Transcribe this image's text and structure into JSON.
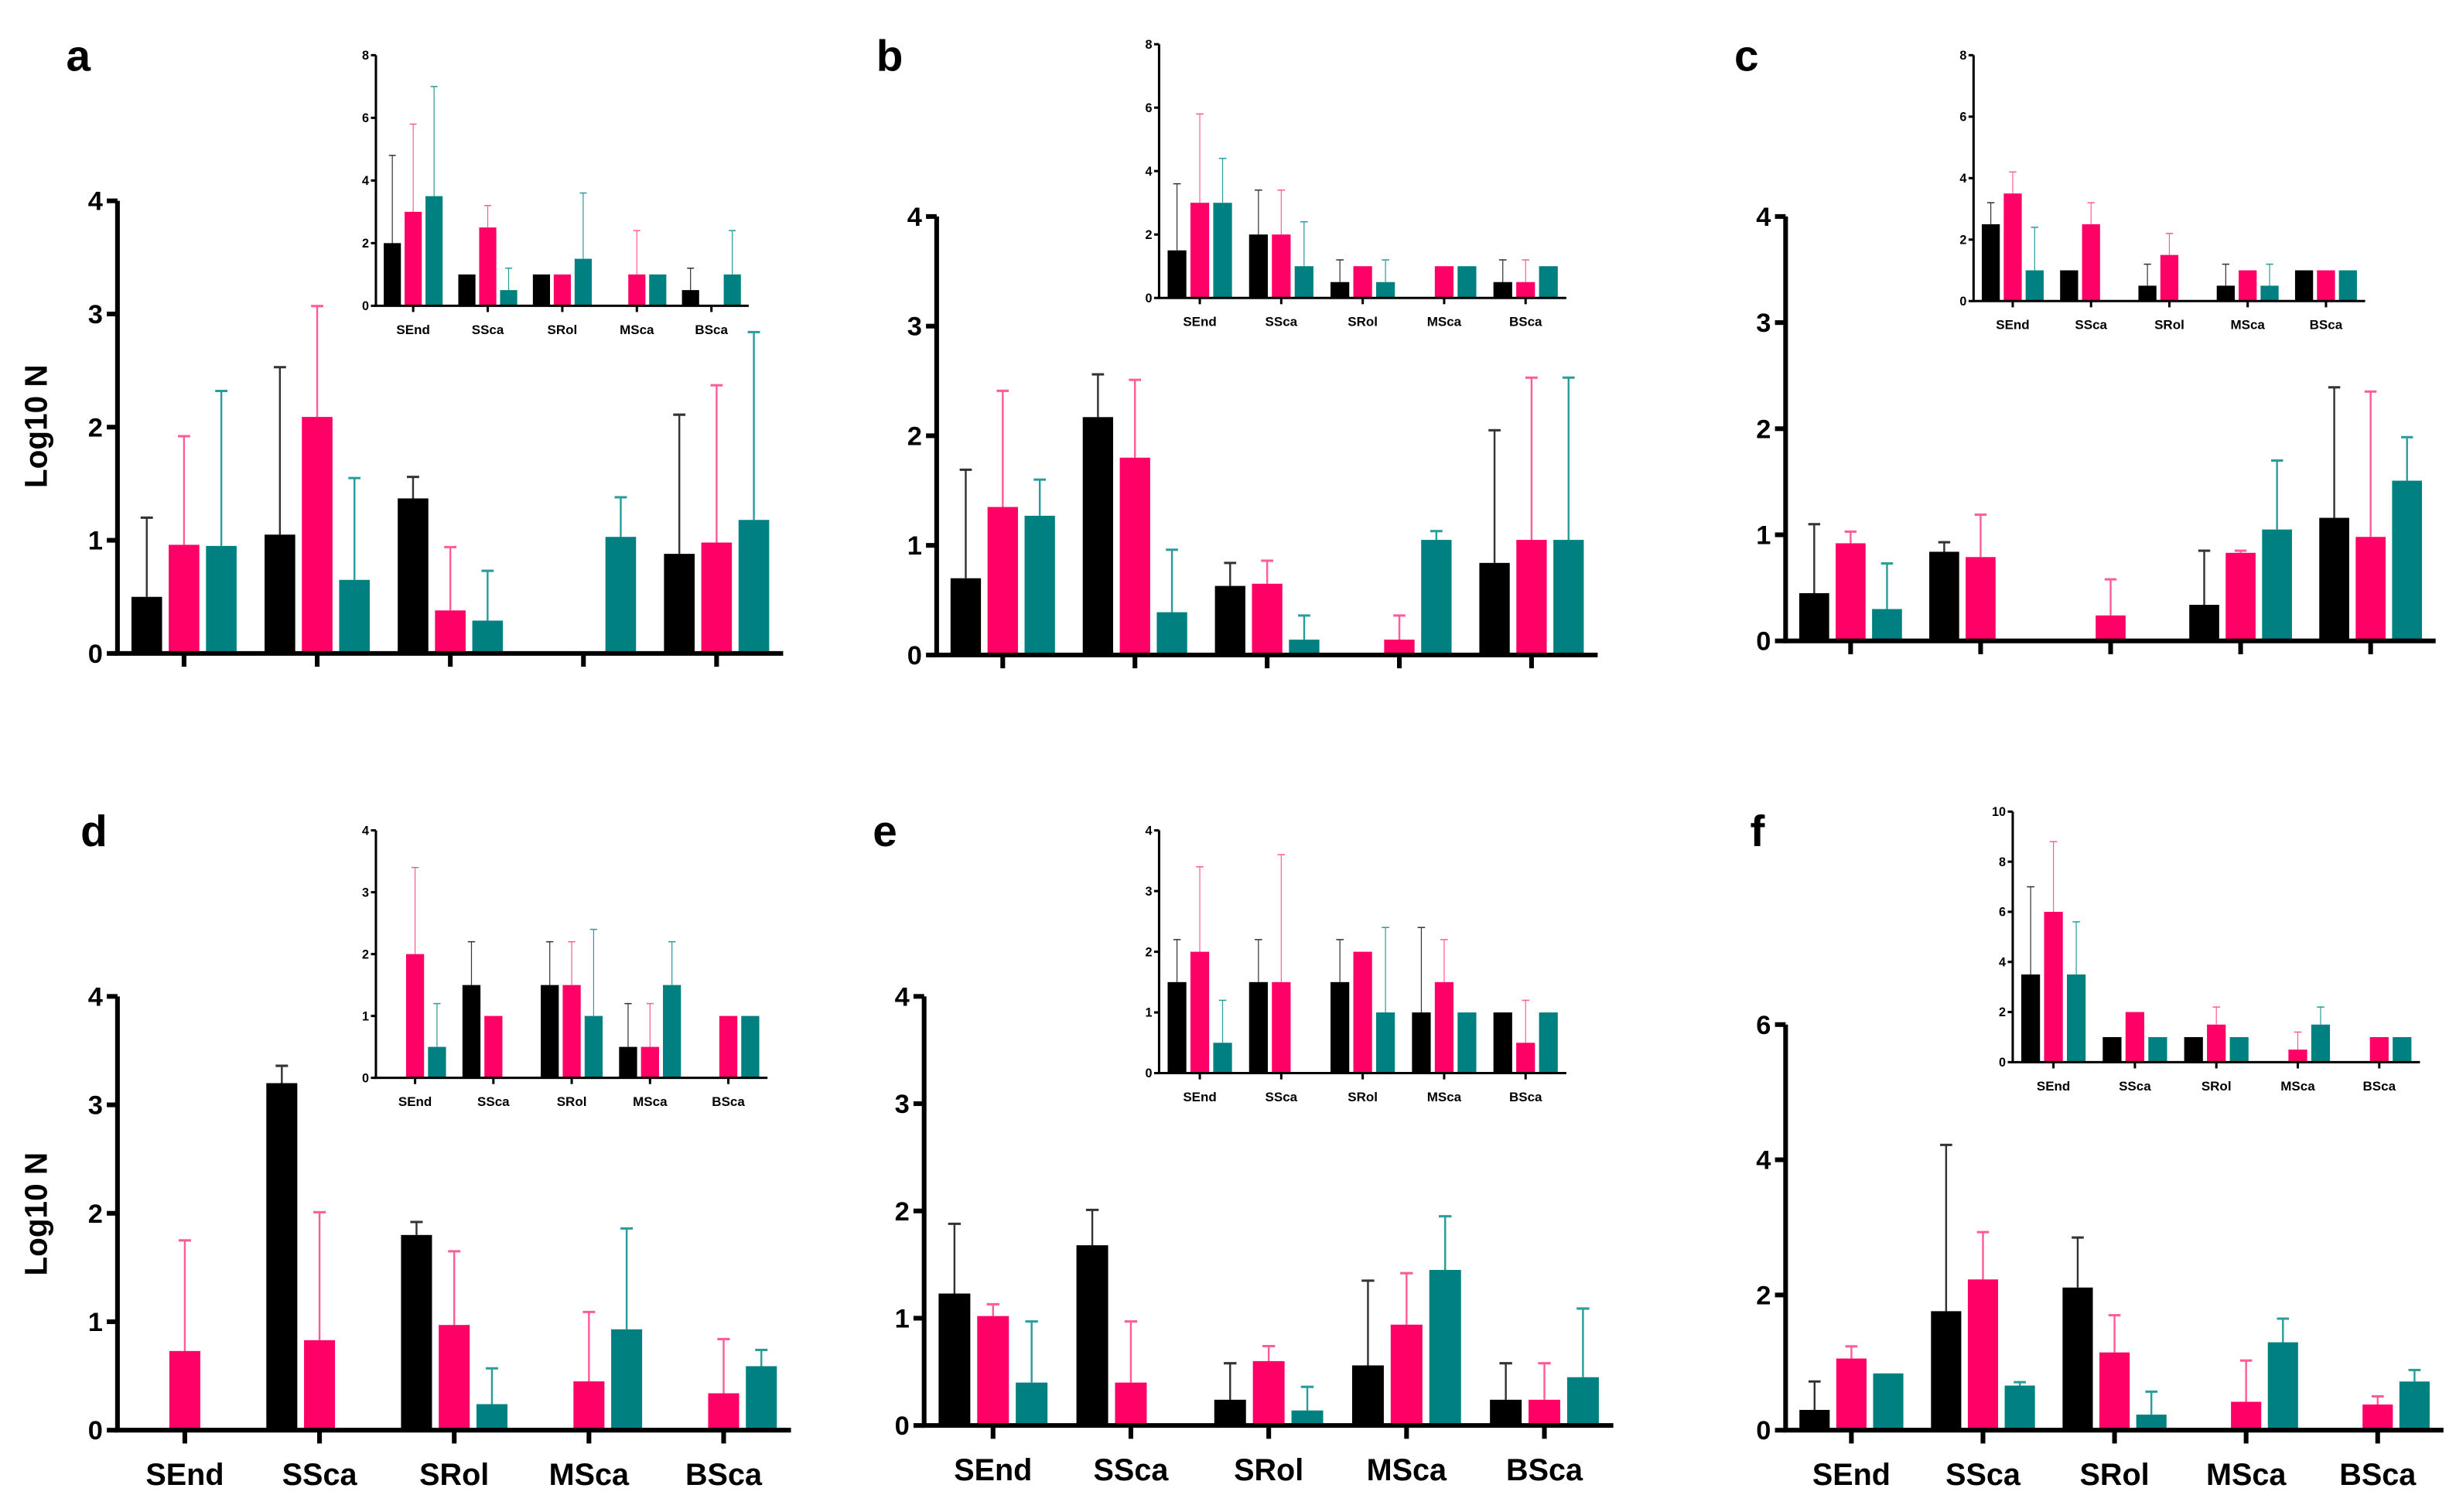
{
  "colors": {
    "series": [
      "#000000",
      "#ff0066",
      "#008080"
    ],
    "errors": [
      "#333333",
      "#ff5c99",
      "#2a9c9c"
    ]
  },
  "chart_data": [
    {
      "type": "bar",
      "panel": "a",
      "ylabel": "Log10 N",
      "categories": [
        "SEnd",
        "SSca",
        "SRol",
        "MSca",
        "BSca"
      ],
      "show_category_labels": false,
      "main": {
        "ylim": [
          0,
          4
        ],
        "yticks": [
          0,
          1,
          2,
          3,
          4
        ],
        "series": [
          {
            "values": [
              0.5,
              1.05,
              1.37,
              0,
              0.88
            ],
            "err_upper": [
              1.2,
              2.53,
              1.56,
              null,
              2.11
            ]
          },
          {
            "values": [
              0.96,
              2.09,
              0.38,
              0,
              0.98
            ],
            "err_upper": [
              1.92,
              3.07,
              0.94,
              null,
              2.37
            ]
          },
          {
            "values": [
              0.95,
              0.65,
              0.29,
              1.03,
              1.18
            ],
            "err_upper": [
              2.32,
              1.55,
              0.73,
              1.38,
              2.84
            ]
          }
        ]
      },
      "inset": {
        "ylim": [
          0,
          8
        ],
        "yticks": [
          0,
          2,
          4,
          6,
          8
        ],
        "series": [
          {
            "values": [
              2,
              1,
              1,
              0,
              0.5
            ],
            "err_upper": [
              4.8,
              null,
              null,
              null,
              1.2
            ]
          },
          {
            "values": [
              3,
              2.5,
              1,
              1,
              0
            ],
            "err_upper": [
              5.8,
              3.2,
              null,
              2.4,
              null
            ]
          },
          {
            "values": [
              3.5,
              0.5,
              1.5,
              1,
              1
            ],
            "err_upper": [
              7,
              1.2,
              3.6,
              null,
              2.4
            ]
          }
        ]
      }
    },
    {
      "type": "bar",
      "panel": "b",
      "ylabel": "",
      "categories": [
        "SEnd",
        "SSca",
        "SRol",
        "MSca",
        "BSca"
      ],
      "show_category_labels": false,
      "main": {
        "ylim": [
          0,
          4
        ],
        "yticks": [
          0,
          1,
          2,
          3,
          4
        ],
        "series": [
          {
            "values": [
              0.7,
              2.17,
              0.63,
              0,
              0.84
            ],
            "err_upper": [
              1.69,
              2.56,
              0.84,
              null,
              2.05
            ]
          },
          {
            "values": [
              1.35,
              1.8,
              0.65,
              0.14,
              1.05
            ],
            "err_upper": [
              2.41,
              2.51,
              0.86,
              0.36,
              2.53
            ]
          },
          {
            "values": [
              1.27,
              0.39,
              0.14,
              1.05,
              1.05
            ],
            "err_upper": [
              1.6,
              0.96,
              0.36,
              1.13,
              2.53
            ]
          }
        ]
      },
      "inset": {
        "ylim": [
          0,
          8
        ],
        "yticks": [
          0,
          2,
          4,
          6,
          8
        ],
        "series": [
          {
            "values": [
              1.5,
              2,
              0.5,
              0,
              0.5
            ],
            "err_upper": [
              3.6,
              3.4,
              1.2,
              null,
              1.2
            ]
          },
          {
            "values": [
              3,
              2,
              1,
              1,
              0.5
            ],
            "err_upper": [
              5.8,
              3.4,
              null,
              null,
              1.2
            ]
          },
          {
            "values": [
              3,
              1,
              0.5,
              1,
              1
            ],
            "err_upper": [
              4.4,
              2.4,
              1.2,
              null,
              null
            ]
          }
        ]
      }
    },
    {
      "type": "bar",
      "panel": "c",
      "ylabel": "",
      "categories": [
        "SEnd",
        "SSca",
        "SRol",
        "MSca",
        "BSca"
      ],
      "show_category_labels": false,
      "main": {
        "ylim": [
          0,
          4
        ],
        "yticks": [
          0,
          1,
          2,
          3,
          4
        ],
        "series": [
          {
            "values": [
              0.45,
              0.84,
              0,
              0.34,
              1.16
            ],
            "err_upper": [
              1.1,
              0.93,
              null,
              0.85,
              2.39
            ]
          },
          {
            "values": [
              0.92,
              0.79,
              0.24,
              0.83,
              0.98
            ],
            "err_upper": [
              1.03,
              1.19,
              0.58,
              0.85,
              2.35
            ]
          },
          {
            "values": [
              0.3,
              0,
              0,
              1.05,
              1.51
            ],
            "err_upper": [
              0.73,
              null,
              null,
              1.7,
              1.92
            ]
          }
        ]
      },
      "inset": {
        "ylim": [
          0,
          8
        ],
        "yticks": [
          0,
          2,
          4,
          6,
          8
        ],
        "series": [
          {
            "values": [
              2.5,
              1,
              0.5,
              0.5,
              1
            ],
            "err_upper": [
              3.2,
              null,
              1.2,
              1.2,
              null
            ]
          },
          {
            "values": [
              3.5,
              2.5,
              1.5,
              1,
              1
            ],
            "err_upper": [
              4.2,
              3.2,
              2.2,
              null,
              null
            ]
          },
          {
            "values": [
              1,
              0,
              0,
              0.5,
              1
            ],
            "err_upper": [
              2.4,
              null,
              null,
              1.2,
              null
            ]
          }
        ]
      }
    },
    {
      "type": "bar",
      "panel": "d",
      "ylabel": "Log10 N",
      "categories": [
        "SEnd",
        "SSca",
        "SRol",
        "MSca",
        "BSca"
      ],
      "show_category_labels": true,
      "main": {
        "ylim": [
          0,
          4
        ],
        "yticks": [
          0,
          1,
          2,
          3,
          4
        ],
        "series": [
          {
            "values": [
              0,
              3.2,
              1.8,
              0,
              0
            ],
            "err_upper": [
              null,
              3.36,
              1.92,
              null,
              null
            ]
          },
          {
            "values": [
              0.73,
              0.83,
              0.97,
              0.45,
              0.34
            ],
            "err_upper": [
              1.75,
              2.01,
              1.65,
              1.09,
              0.84
            ]
          },
          {
            "values": [
              0,
              0,
              0.24,
              0.93,
              0.59
            ],
            "err_upper": [
              null,
              null,
              0.57,
              1.86,
              0.74
            ]
          }
        ]
      },
      "inset": {
        "ylim": [
          0,
          4
        ],
        "yticks": [
          0,
          1,
          2,
          3,
          4
        ],
        "series": [
          {
            "values": [
              0,
              1.5,
              1.5,
              0.5,
              0
            ],
            "err_upper": [
              null,
              2.2,
              2.2,
              1.2,
              null
            ]
          },
          {
            "values": [
              2,
              1,
              1.5,
              0.5,
              1
            ],
            "err_upper": [
              3.4,
              null,
              2.2,
              1.2,
              null
            ]
          },
          {
            "values": [
              0.5,
              0,
              1,
              1.5,
              1
            ],
            "err_upper": [
              1.2,
              null,
              2.4,
              2.2,
              null
            ]
          }
        ]
      }
    },
    {
      "type": "bar",
      "panel": "e",
      "ylabel": "",
      "categories": [
        "SEnd",
        "SSca",
        "SRol",
        "MSca",
        "BSca"
      ],
      "show_category_labels": true,
      "main": {
        "ylim": [
          0,
          4
        ],
        "yticks": [
          0,
          1,
          2,
          3,
          4
        ],
        "series": [
          {
            "values": [
              1.23,
              1.68,
              0.24,
              0.56,
              0.24
            ],
            "err_upper": [
              1.88,
              2.01,
              0.58,
              1.35,
              0.58
            ]
          },
          {
            "values": [
              1.02,
              0.4,
              0.6,
              0.94,
              0.24
            ],
            "err_upper": [
              1.13,
              0.97,
              0.74,
              1.42,
              0.58
            ]
          },
          {
            "values": [
              0.4,
              0,
              0.14,
              1.45,
              0.45
            ],
            "err_upper": [
              0.97,
              null,
              0.36,
              1.95,
              1.09
            ]
          }
        ]
      },
      "inset": {
        "ylim": [
          0,
          4
        ],
        "yticks": [
          0,
          1,
          2,
          3,
          4
        ],
        "series": [
          {
            "values": [
              1.5,
              1.5,
              1.5,
              1,
              1
            ],
            "err_upper": [
              2.2,
              2.2,
              2.2,
              2.4,
              null
            ]
          },
          {
            "values": [
              2,
              1.5,
              2,
              1.5,
              0.5
            ],
            "err_upper": [
              3.4,
              3.6,
              null,
              2.2,
              1.2
            ]
          },
          {
            "values": [
              0.5,
              0,
              1,
              1,
              1
            ],
            "err_upper": [
              1.2,
              null,
              2.4,
              null,
              null
            ]
          }
        ]
      }
    },
    {
      "type": "bar",
      "panel": "f",
      "ylabel": "",
      "categories": [
        "SEnd",
        "SSca",
        "SRol",
        "MSca",
        "BSca"
      ],
      "show_category_labels": true,
      "main": {
        "ylim": [
          0,
          6
        ],
        "yticks": [
          0,
          2,
          4,
          6
        ],
        "series": [
          {
            "values": [
              0.3,
              1.76,
              2.11,
              0,
              0
            ],
            "err_upper": [
              0.72,
              4.22,
              2.85,
              null,
              null
            ]
          },
          {
            "values": [
              1.06,
              2.23,
              1.15,
              0.42,
              0.38
            ],
            "err_upper": [
              1.24,
              2.93,
              1.7,
              1.03,
              0.5
            ]
          },
          {
            "values": [
              0.84,
              0.66,
              0.23,
              1.3,
              0.72
            ],
            "err_upper": [
              null,
              0.71,
              0.57,
              1.65,
              0.89
            ]
          }
        ]
      },
      "inset": {
        "ylim": [
          0,
          10
        ],
        "yticks": [
          0,
          2,
          4,
          6,
          8,
          10
        ],
        "series": [
          {
            "values": [
              3.5,
              1,
              1,
              0,
              0
            ],
            "err_upper": [
              7,
              null,
              null,
              null,
              null
            ]
          },
          {
            "values": [
              6,
              2,
              1.5,
              0.5,
              1
            ],
            "err_upper": [
              8.8,
              null,
              2.2,
              1.2,
              null
            ]
          },
          {
            "values": [
              3.5,
              1,
              1,
              1.5,
              1
            ],
            "err_upper": [
              5.6,
              null,
              null,
              2.2,
              null
            ]
          }
        ]
      }
    }
  ]
}
